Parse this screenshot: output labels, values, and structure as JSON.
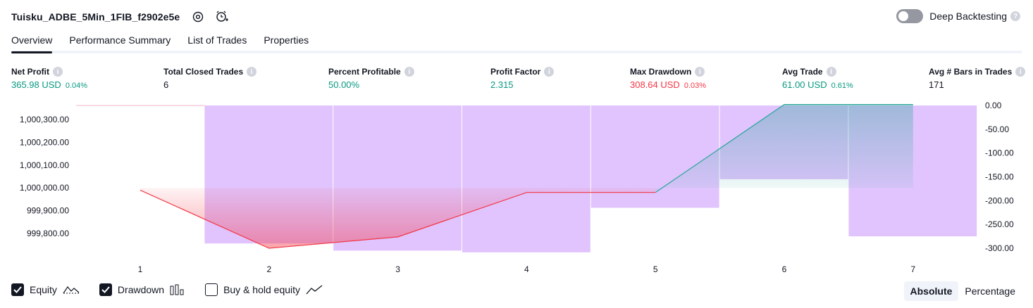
{
  "header": {
    "title": "Tuisku_ADBE_5Min_1FIB_f2902e5e",
    "settings_icon": "settings-gear-icon",
    "add_alert_icon": "alarm-add-icon",
    "deep_backtesting_label": "Deep Backtesting",
    "deep_backtesting_enabled": false
  },
  "tabs": [
    {
      "label": "Overview",
      "active": true
    },
    {
      "label": "Performance Summary",
      "active": false
    },
    {
      "label": "List of Trades",
      "active": false
    },
    {
      "label": "Properties",
      "active": false
    }
  ],
  "metrics": [
    {
      "label": "Net Profit",
      "value": "365.98 USD",
      "pct": "0.04%",
      "color": "green"
    },
    {
      "label": "Total Closed Trades",
      "value": "6",
      "pct": "",
      "color": "black"
    },
    {
      "label": "Percent Profitable",
      "value": "50.00%",
      "pct": "",
      "color": "green"
    },
    {
      "label": "Profit Factor",
      "value": "2.315",
      "pct": "",
      "color": "green"
    },
    {
      "label": "Max Drawdown",
      "value": "308.64 USD",
      "pct": "0.03%",
      "color": "red"
    },
    {
      "label": "Avg Trade",
      "value": "61.00 USD",
      "pct": "0.61%",
      "color": "green"
    },
    {
      "label": "Avg # Bars in Trades",
      "value": "171",
      "pct": "",
      "color": "black"
    }
  ],
  "colors": {
    "green": "#089981",
    "red": "#f23645",
    "drawdown_bar": "#e1c4fd",
    "equity_loss_line": "#f23645",
    "equity_gain_line": "#26a69a"
  },
  "chart_data": {
    "type": "line",
    "x": [
      1,
      2,
      3,
      4,
      5,
      6,
      7
    ],
    "x_tick_labels": [
      "1",
      "2",
      "3",
      "4",
      "5",
      "6",
      "7"
    ],
    "series": [
      {
        "name": "Equity",
        "axis": "left",
        "values": [
          999990,
          999735,
          999785,
          999980,
          999980,
          1000365.98,
          1000365.98
        ]
      },
      {
        "name": "Drawdown",
        "axis": "right",
        "type": "bar",
        "values": [
          0,
          -290,
          -305,
          -308.64,
          -215,
          -155,
          -275
        ]
      }
    ],
    "left_axis": {
      "ticks": [
        "999,800.00",
        "999,900.00",
        "1,000,000.00",
        "1,000,100.00",
        "1,000,200.00",
        "1,000,300.00"
      ],
      "range": [
        999680,
        1000410
      ]
    },
    "right_axis": {
      "ticks": [
        "0.00",
        "-50.00",
        "-100.00",
        "-150.00",
        "-200.00",
        "-250.00",
        "-300.00"
      ],
      "range": [
        -320,
        0
      ]
    },
    "baseline_equity": 1000000,
    "grid": false
  },
  "legend": [
    {
      "label": "Equity",
      "checked": true,
      "icon": "equity-line-icon"
    },
    {
      "label": "Drawdown",
      "checked": true,
      "icon": "drawdown-bars-icon"
    },
    {
      "label": "Buy & hold equity",
      "checked": false,
      "icon": "buy-hold-line-icon"
    }
  ],
  "mode": {
    "absolute": "Absolute",
    "percentage": "Percentage",
    "selected": "Absolute"
  }
}
